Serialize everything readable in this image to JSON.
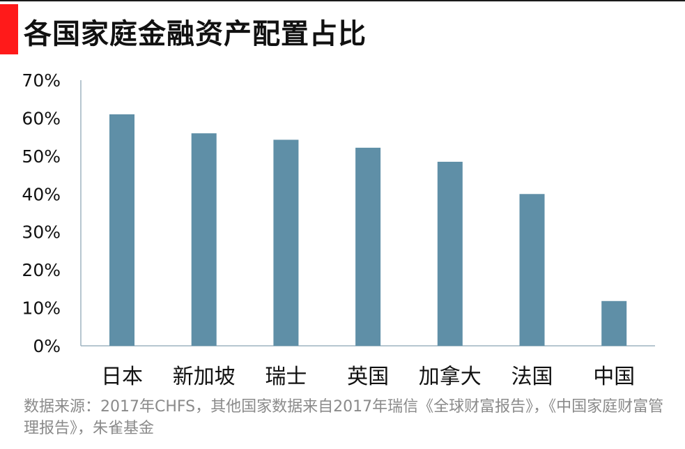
{
  "title": "各国家庭金融资产配置占比",
  "source_note": "数据来源：2017年CHFS，其他国家数据来自2017年瑞信《全球财富报告》，《中国家庭财富管理报告》，朱雀基金",
  "colors": {
    "bar": "#5f8fa7",
    "accent": "#ff1a1a",
    "axis": "#9db3c0",
    "text": "#111111",
    "note": "#8a8a8a"
  },
  "chart_data": {
    "type": "bar",
    "title": "各国家庭金融资产配置占比",
    "categories": [
      "日本",
      "新加坡",
      "瑞士",
      "英国",
      "加拿大",
      "法国",
      "中国"
    ],
    "values": [
      61,
      56,
      54.3,
      52.2,
      48.5,
      40,
      11.8
    ],
    "unit": "%",
    "ylim": [
      0,
      70
    ],
    "yticks": [
      0,
      10,
      20,
      30,
      40,
      50,
      60,
      70
    ],
    "ytick_labels": [
      "0%",
      "10%",
      "20%",
      "30%",
      "40%",
      "50%",
      "60%",
      "70%"
    ],
    "grid": false,
    "legend": "none"
  }
}
